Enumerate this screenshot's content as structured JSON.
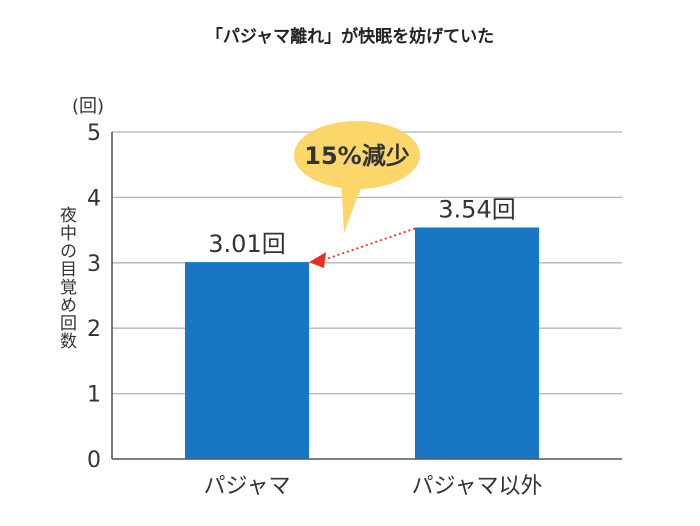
{
  "title": "「パジャマ離れ」が快眠を妨げていた",
  "colors": {
    "bar": "#1777c4",
    "grid": "#b5b5b5",
    "axis": "#555555",
    "callout": "#fbd66a",
    "arrow": "#e63027",
    "text": "#333333"
  },
  "chart_data": {
    "type": "bar",
    "title": "「パジャマ離れ」が快眠を妨げていた",
    "ylabel": "夜中の目覚め回数",
    "yunit": "(回)",
    "categories": [
      "パジャマ",
      "パジャマ以外"
    ],
    "values": [
      3.01,
      3.54
    ],
    "value_labels": [
      "3.01回",
      "3.54回"
    ],
    "yticks": [
      "0",
      "1",
      "2",
      "3",
      "4",
      "5"
    ],
    "ylim": [
      0,
      5
    ],
    "grid": true,
    "annotation": {
      "text": "15%減少",
      "from_category": 1,
      "to_category": 0
    }
  }
}
